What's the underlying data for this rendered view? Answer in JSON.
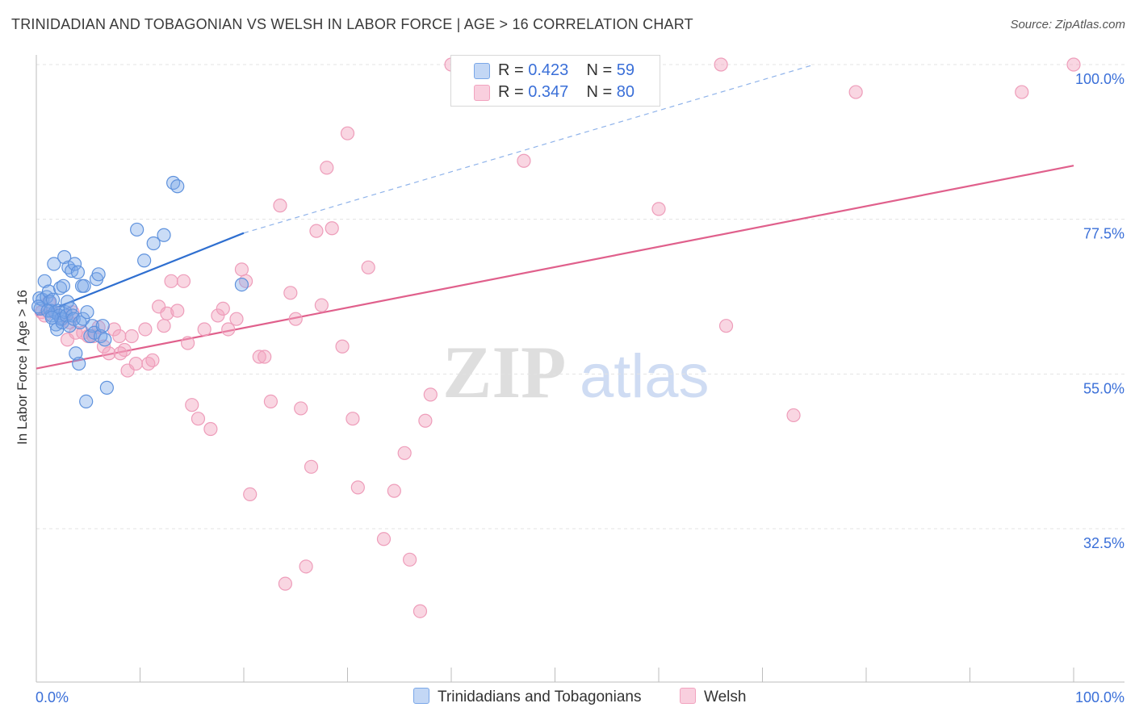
{
  "title": "TRINIDADIAN AND TOBAGONIAN VS WELSH IN LABOR FORCE | AGE > 16 CORRELATION CHART",
  "source": "Source: ZipAtlas.com",
  "watermark": {
    "zip": "ZIP",
    "atlas": "atlas"
  },
  "legend": {
    "r_label": "R =",
    "n_label": "N =",
    "rows": [
      {
        "r": "0.423",
        "n": "59"
      },
      {
        "r": "0.347",
        "n": "80"
      }
    ]
  },
  "bottom_legend": [
    "Trinidadians and Tobagonians",
    "Welsh"
  ],
  "chart_data": {
    "type": "scatter",
    "title": "TRINIDADIAN AND TOBAGONIAN VS WELSH IN LABOR FORCE | AGE > 16 CORRELATION CHART",
    "xlabel": "",
    "ylabel": "In Labor Force | Age > 16",
    "xlim": [
      0,
      100
    ],
    "ylim": [
      11,
      101.5
    ],
    "x_tick_labels": [
      "0.0%",
      "100.0%"
    ],
    "y_ticks": [
      {
        "value": 100,
        "label": "100.0%"
      },
      {
        "value": 77.5,
        "label": "77.5%"
      },
      {
        "value": 55,
        "label": "55.0%"
      },
      {
        "value": 32.5,
        "label": "32.5%"
      }
    ],
    "colors": {
      "blue": "#7aa7e8",
      "blue_line": "#2f6fd0",
      "pink": "#f2a3bf",
      "pink_line": "#e0608c"
    },
    "series": [
      {
        "name": "Trinidadians and Tobagonians",
        "r": 0.423,
        "n": 59,
        "trend": {
          "x0": 0,
          "y0": 63.5,
          "x1": 20,
          "y1": 75.5,
          "dash_to_x": 75,
          "dash_to_y": 100
        },
        "points": [
          [
            0.3,
            66
          ],
          [
            0.4,
            64.5
          ],
          [
            0.6,
            65.8
          ],
          [
            0.8,
            68.5
          ],
          [
            1.0,
            66.2
          ],
          [
            1.2,
            67
          ],
          [
            1.3,
            65.5
          ],
          [
            1.4,
            64.2
          ],
          [
            1.5,
            63.5
          ],
          [
            1.6,
            65.8
          ],
          [
            1.7,
            71
          ],
          [
            1.8,
            64
          ],
          [
            1.9,
            62.2
          ],
          [
            2.0,
            61.5
          ],
          [
            2.1,
            64.2
          ],
          [
            2.2,
            63.5
          ],
          [
            2.3,
            67.5
          ],
          [
            2.4,
            63
          ],
          [
            2.5,
            62.5
          ],
          [
            2.6,
            67.8
          ],
          [
            2.7,
            72
          ],
          [
            2.8,
            64
          ],
          [
            2.9,
            63.5
          ],
          [
            3.0,
            65.5
          ],
          [
            3.1,
            70.5
          ],
          [
            3.2,
            62
          ],
          [
            3.3,
            64.5
          ],
          [
            3.4,
            70
          ],
          [
            3.5,
            63.5
          ],
          [
            3.6,
            63
          ],
          [
            3.7,
            71
          ],
          [
            3.8,
            58
          ],
          [
            4.0,
            69.8
          ],
          [
            4.1,
            56.5
          ],
          [
            4.2,
            62.5
          ],
          [
            4.4,
            67.8
          ],
          [
            4.5,
            63
          ],
          [
            4.6,
            67.8
          ],
          [
            4.8,
            51
          ],
          [
            4.9,
            64
          ],
          [
            5.2,
            60.5
          ],
          [
            5.4,
            62
          ],
          [
            5.6,
            61
          ],
          [
            5.8,
            68.8
          ],
          [
            6.0,
            69.5
          ],
          [
            6.2,
            60.5
          ],
          [
            6.4,
            62
          ],
          [
            6.6,
            60
          ],
          [
            6.8,
            53
          ],
          [
            9.7,
            76
          ],
          [
            10.4,
            71.5
          ],
          [
            11.3,
            74
          ],
          [
            12.3,
            75.2
          ],
          [
            13.2,
            82.8
          ],
          [
            13.6,
            82.3
          ],
          [
            19.8,
            68
          ],
          [
            0.2,
            64.8
          ],
          [
            1.1,
            64.2
          ],
          [
            1.5,
            63.2
          ]
        ]
      },
      {
        "name": "Welsh",
        "r": 0.347,
        "n": 80,
        "trend": {
          "x0": 0,
          "y0": 55.8,
          "x1": 100,
          "y1": 85.3
        },
        "points": [
          [
            0.5,
            64
          ],
          [
            0.8,
            63.5
          ],
          [
            1.2,
            65.5
          ],
          [
            1.8,
            64
          ],
          [
            2.5,
            63
          ],
          [
            3.0,
            60
          ],
          [
            3.5,
            64
          ],
          [
            3.8,
            61
          ],
          [
            4.5,
            61
          ],
          [
            5.0,
            60.5
          ],
          [
            5.5,
            60.5
          ],
          [
            6.0,
            61.8
          ],
          [
            6.5,
            59
          ],
          [
            7.0,
            58
          ],
          [
            7.5,
            61.5
          ],
          [
            8.0,
            60.5
          ],
          [
            8.5,
            58.5
          ],
          [
            8.8,
            55.5
          ],
          [
            9.2,
            60.5
          ],
          [
            9.6,
            56.5
          ],
          [
            10.5,
            61.5
          ],
          [
            10.8,
            56.5
          ],
          [
            11.2,
            57
          ],
          [
            11.8,
            64.8
          ],
          [
            12.3,
            62
          ],
          [
            12.6,
            63.8
          ],
          [
            13.0,
            68.5
          ],
          [
            13.6,
            64.2
          ],
          [
            14.2,
            68.5
          ],
          [
            14.6,
            59.5
          ],
          [
            15.0,
            50.5
          ],
          [
            15.6,
            48.5
          ],
          [
            16.2,
            61.5
          ],
          [
            16.8,
            47
          ],
          [
            17.5,
            63.5
          ],
          [
            18.0,
            64.5
          ],
          [
            18.5,
            61.5
          ],
          [
            19.3,
            63
          ],
          [
            19.8,
            70.2
          ],
          [
            20.2,
            68.5
          ],
          [
            20.6,
            37.5
          ],
          [
            21.5,
            57.5
          ],
          [
            22.0,
            57.5
          ],
          [
            22.6,
            51
          ],
          [
            23.5,
            79.5
          ],
          [
            24.0,
            24.5
          ],
          [
            24.5,
            66.8
          ],
          [
            25.0,
            63
          ],
          [
            25.5,
            50
          ],
          [
            26.0,
            27
          ],
          [
            26.5,
            41.5
          ],
          [
            27.0,
            75.8
          ],
          [
            27.5,
            65
          ],
          [
            28.0,
            85
          ],
          [
            28.5,
            76.2
          ],
          [
            29.5,
            59
          ],
          [
            30.0,
            90
          ],
          [
            30.5,
            48.5
          ],
          [
            31.0,
            38.5
          ],
          [
            32.0,
            70.5
          ],
          [
            33.5,
            31
          ],
          [
            34.5,
            38
          ],
          [
            35.5,
            43.5
          ],
          [
            36.0,
            28
          ],
          [
            37.0,
            20.5
          ],
          [
            37.5,
            48.2
          ],
          [
            38.0,
            52
          ],
          [
            40.0,
            100
          ],
          [
            41.0,
            100
          ],
          [
            45.0,
            100
          ],
          [
            47.0,
            86
          ],
          [
            60.0,
            79
          ],
          [
            66.0,
            100
          ],
          [
            66.5,
            62
          ],
          [
            73.0,
            49
          ],
          [
            79.0,
            96
          ],
          [
            95.0,
            96
          ],
          [
            100.0,
            100
          ],
          [
            3.2,
            62.5
          ],
          [
            8.1,
            58
          ]
        ]
      }
    ]
  }
}
